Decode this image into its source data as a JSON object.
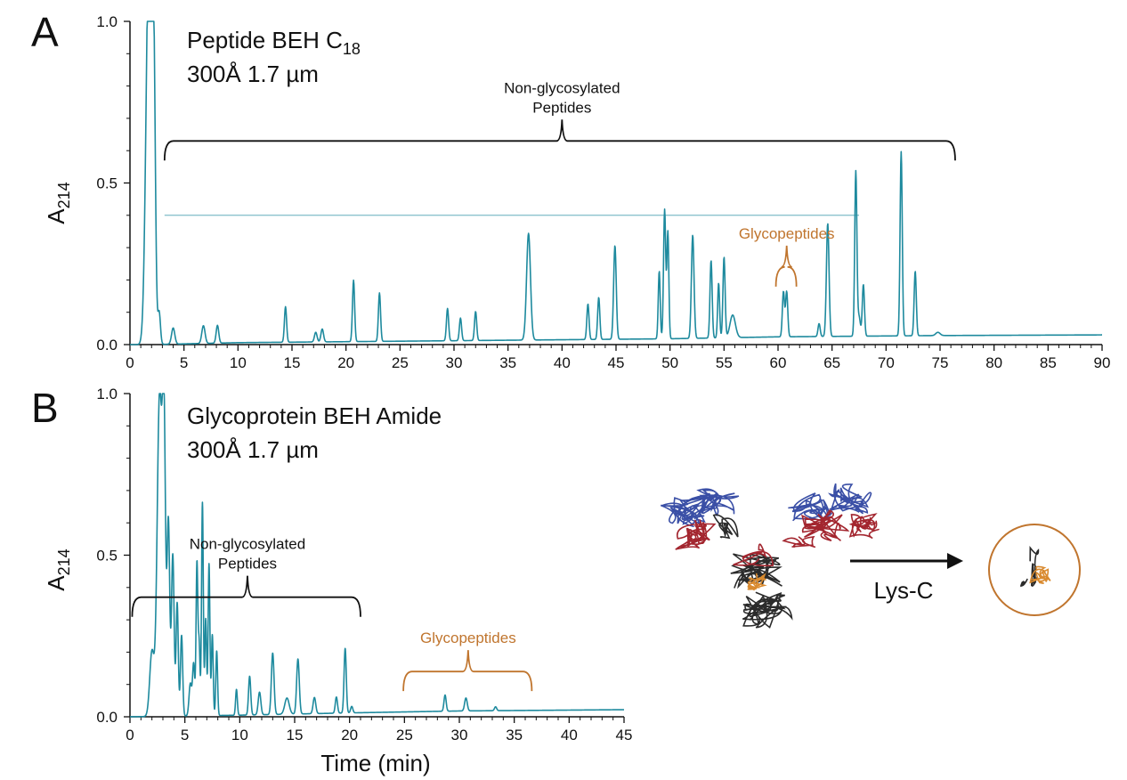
{
  "chart_data": [
    {
      "type": "line",
      "panel_label": "A",
      "title_line1_main": "Peptide BEH C",
      "title_line1_sub": "18",
      "title_line2": "300Å 1.7  µm",
      "ylabel_main": "A",
      "ylabel_sub": "214",
      "xlabel": "",
      "xlim": [
        0,
        90
      ],
      "ylim": [
        0,
        1.0
      ],
      "x_ticks": [
        "0",
        "5",
        "10",
        "15",
        "20",
        "25",
        "30",
        "35",
        "40",
        "45",
        "50",
        "55",
        "60",
        "65",
        "70",
        "75",
        "80",
        "85",
        "90"
      ],
      "y_ticks": [
        "0.0",
        "0.5",
        "1.0"
      ],
      "grid": false,
      "line_color": "#1e8a9e",
      "baseline": [
        [
          0,
          0.0
        ],
        [
          2,
          0.0
        ],
        [
          10,
          0.006
        ],
        [
          30,
          0.012
        ],
        [
          50,
          0.018
        ],
        [
          60,
          0.024
        ],
        [
          75,
          0.028
        ],
        [
          90,
          0.03
        ]
      ],
      "peaks": [
        [
          1.7,
          1.0,
          0.25
        ],
        [
          2.0,
          0.9,
          0.2
        ],
        [
          2.25,
          0.45,
          0.14
        ],
        [
          2.7,
          0.1,
          0.12
        ],
        [
          4.0,
          0.05,
          0.15
        ],
        [
          6.8,
          0.055,
          0.15
        ],
        [
          8.1,
          0.055,
          0.12
        ],
        [
          14.4,
          0.11,
          0.1
        ],
        [
          17.2,
          0.03,
          0.12
        ],
        [
          17.8,
          0.04,
          0.12
        ],
        [
          20.7,
          0.19,
          0.1
        ],
        [
          23.1,
          0.15,
          0.1
        ],
        [
          29.4,
          0.1,
          0.1
        ],
        [
          30.6,
          0.07,
          0.1
        ],
        [
          32.0,
          0.09,
          0.1
        ],
        [
          36.9,
          0.33,
          0.18
        ],
        [
          42.4,
          0.11,
          0.1
        ],
        [
          43.4,
          0.13,
          0.1
        ],
        [
          44.9,
          0.29,
          0.12
        ],
        [
          49.0,
          0.21,
          0.09
        ],
        [
          49.5,
          0.4,
          0.1
        ],
        [
          49.8,
          0.33,
          0.09
        ],
        [
          52.1,
          0.32,
          0.12
        ],
        [
          53.8,
          0.24,
          0.1
        ],
        [
          54.5,
          0.17,
          0.09
        ],
        [
          55.0,
          0.25,
          0.1
        ],
        [
          55.8,
          0.07,
          0.25
        ],
        [
          60.5,
          0.14,
          0.1
        ],
        [
          60.8,
          0.14,
          0.1
        ],
        [
          63.8,
          0.04,
          0.1
        ],
        [
          64.6,
          0.35,
          0.12
        ],
        [
          67.2,
          0.51,
          0.1
        ],
        [
          67.5,
          0.06,
          0.12
        ],
        [
          67.9,
          0.16,
          0.1
        ],
        [
          71.4,
          0.57,
          0.1
        ],
        [
          72.7,
          0.2,
          0.1
        ],
        [
          74.8,
          0.01,
          0.2
        ]
      ],
      "annotations": [
        {
          "text_lines": [
            "Non-glycosylated",
            "Peptides"
          ],
          "x_start": 3.2,
          "x_end": 76.4,
          "x_center": 40,
          "y_level": 0.63,
          "color": "#111111"
        },
        {
          "text_lines": [
            "Glycopeptides"
          ],
          "x_start": 59.8,
          "x_end": 61.7,
          "x_center": 60.8,
          "y_level": 0.24,
          "color": "#c0752e"
        }
      ],
      "hline_y": 0.4,
      "hline_x": [
        3.2,
        67.5
      ]
    },
    {
      "type": "line",
      "panel_label": "B",
      "title_line1_main": "Glycoprotein BEH Amide",
      "title_line1_sub": "",
      "title_line2": "300Å 1.7  µm",
      "ylabel_main": "A",
      "ylabel_sub": "214",
      "xlabel": "Time (min)",
      "xlim": [
        0,
        45
      ],
      "ylim": [
        0,
        1.0
      ],
      "x_ticks": [
        "0",
        "5",
        "10",
        "15",
        "20",
        "25",
        "30",
        "35",
        "40",
        "45"
      ],
      "y_ticks": [
        "0.0",
        "0.5",
        "1.0"
      ],
      "grid": false,
      "line_color": "#1e8a9e",
      "baseline": [
        [
          0,
          0.0
        ],
        [
          10,
          0.005
        ],
        [
          20,
          0.012
        ],
        [
          30,
          0.018
        ],
        [
          45,
          0.022
        ]
      ],
      "peaks": [
        [
          2.0,
          0.2,
          0.2
        ],
        [
          2.7,
          1.0,
          0.22
        ],
        [
          3.1,
          0.85,
          0.14
        ],
        [
          3.5,
          0.6,
          0.12
        ],
        [
          3.9,
          0.5,
          0.12
        ],
        [
          4.3,
          0.35,
          0.1
        ],
        [
          4.7,
          0.25,
          0.1
        ],
        [
          5.5,
          0.1,
          0.12
        ],
        [
          5.8,
          0.16,
          0.1
        ],
        [
          6.1,
          0.47,
          0.08
        ],
        [
          6.3,
          0.22,
          0.08
        ],
        [
          6.6,
          0.66,
          0.08
        ],
        [
          6.9,
          0.3,
          0.08
        ],
        [
          7.2,
          0.47,
          0.08
        ],
        [
          7.5,
          0.25,
          0.08
        ],
        [
          7.9,
          0.2,
          0.08
        ],
        [
          9.7,
          0.08,
          0.08
        ],
        [
          10.9,
          0.12,
          0.1
        ],
        [
          11.8,
          0.07,
          0.12
        ],
        [
          13.0,
          0.19,
          0.12
        ],
        [
          14.3,
          0.05,
          0.2
        ],
        [
          15.3,
          0.17,
          0.12
        ],
        [
          16.8,
          0.05,
          0.12
        ],
        [
          18.8,
          0.05,
          0.1
        ],
        [
          19.6,
          0.2,
          0.1
        ],
        [
          20.2,
          0.02,
          0.1
        ],
        [
          28.7,
          0.05,
          0.1
        ],
        [
          30.6,
          0.04,
          0.12
        ],
        [
          33.3,
          0.012,
          0.1
        ]
      ],
      "annotations": [
        {
          "text_lines": [
            "Non-glycosylated",
            "Peptides"
          ],
          "x_start": 0.2,
          "x_end": 21.0,
          "x_center": 10.7,
          "y_level": 0.37,
          "color": "#111111"
        },
        {
          "text_lines": [
            "Glycopeptides"
          ],
          "x_start": 24.9,
          "x_end": 36.6,
          "x_center": 30.8,
          "y_level": 0.14,
          "color": "#c0752e"
        }
      ]
    }
  ],
  "inset": {
    "arrow_label": "Lys-C",
    "colors": {
      "blue": "#3a4fa6",
      "red": "#a3262f",
      "black": "#2b2b2b",
      "orange": "#d98a2f",
      "circle": "#c0752e"
    }
  }
}
